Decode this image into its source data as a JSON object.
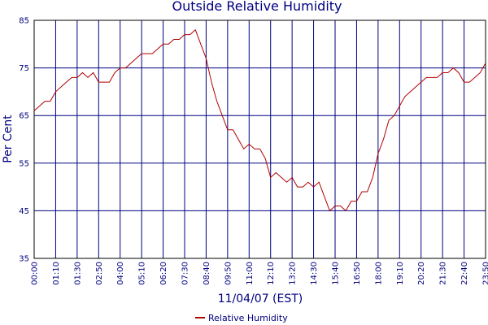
{
  "chart_data": {
    "type": "line",
    "title": "Outside Relative Humidity",
    "x_label": "11/04/07 (EST)",
    "y_label": "Per Cent",
    "categories": [
      "00:00",
      null,
      null,
      null,
      "01:10",
      null,
      null,
      null,
      "01:30",
      null,
      null,
      null,
      "02:50",
      null,
      null,
      null,
      "04:00",
      null,
      null,
      null,
      "05:10",
      null,
      null,
      null,
      "06:20",
      null,
      null,
      null,
      "07:30",
      null,
      null,
      null,
      "08:40",
      null,
      null,
      null,
      "09:50",
      null,
      null,
      null,
      "11:00",
      null,
      null,
      null,
      "12:10",
      null,
      null,
      null,
      "13:20",
      null,
      null,
      null,
      "14:30",
      null,
      null,
      null,
      "15:40",
      null,
      null,
      null,
      "16:50",
      null,
      null,
      null,
      "18:00",
      null,
      null,
      null,
      "19:10",
      null,
      null,
      null,
      "20:20",
      null,
      null,
      null,
      "21:30",
      null,
      null,
      null,
      "22:40",
      null,
      null,
      null,
      "23:50"
    ],
    "series": [
      {
        "name": "Relative Humidity",
        "color": "#b00000",
        "values": [
          66,
          67,
          68,
          68,
          70,
          71,
          72,
          73,
          73,
          74,
          73,
          74,
          72,
          72,
          72,
          74,
          75,
          75,
          76,
          77,
          78,
          78,
          78,
          79,
          80,
          80,
          81,
          81,
          82,
          82,
          83,
          80,
          77,
          72,
          68,
          65,
          62,
          62,
          60,
          58,
          59,
          58,
          58,
          56,
          52,
          53,
          52,
          51,
          52,
          50,
          50,
          51,
          50,
          51,
          48,
          45,
          46,
          46,
          45,
          47,
          47,
          49,
          49,
          52,
          57,
          60,
          64,
          65,
          67,
          69,
          70,
          71,
          72,
          73,
          73,
          73,
          74,
          74,
          75,
          74,
          72,
          72,
          73,
          74,
          76
        ]
      }
    ],
    "ylim": [
      35,
      85
    ],
    "yticks": [
      35,
      45,
      55,
      65,
      75,
      85
    ],
    "grid": true,
    "legend": "bottom"
  }
}
